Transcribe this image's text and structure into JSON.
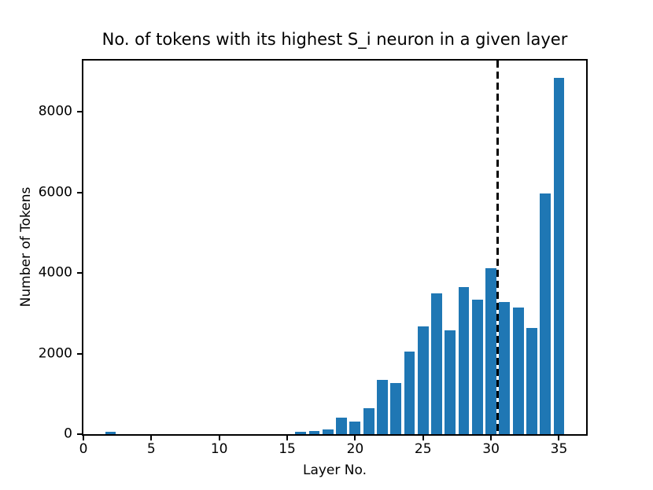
{
  "figure": {
    "background": "#ffffff",
    "text_color": "#000000"
  },
  "chart_data": {
    "type": "bar",
    "title": "No. of tokens with its highest S_i neuron in a given layer",
    "xlabel": "Layer No.",
    "ylabel": "Number of Tokens",
    "bar_color": "#1f77b4",
    "bar_width": 0.8,
    "categories": [
      0,
      1,
      2,
      3,
      4,
      5,
      6,
      7,
      8,
      9,
      10,
      11,
      12,
      13,
      14,
      15,
      16,
      17,
      18,
      19,
      20,
      21,
      22,
      23,
      24,
      25,
      26,
      27,
      28,
      29,
      30,
      31,
      32,
      33,
      34,
      35
    ],
    "values": [
      0,
      0,
      50,
      0,
      0,
      0,
      0,
      0,
      0,
      0,
      0,
      0,
      0,
      0,
      0,
      0,
      50,
      80,
      120,
      410,
      310,
      650,
      1350,
      1270,
      2050,
      2670,
      3500,
      2580,
      3650,
      3340,
      4120,
      3280,
      3150,
      2630,
      5980,
      8850
    ],
    "xticks": [
      0,
      5,
      10,
      15,
      20,
      25,
      30,
      35
    ],
    "yticks": [
      0,
      2000,
      4000,
      6000,
      8000
    ],
    "xlim": [
      0,
      37
    ],
    "ylim": [
      0,
      9270
    ],
    "grid": false,
    "legend": null,
    "vline": {
      "x": 30.5,
      "color": "#000000",
      "style": "dashed"
    }
  }
}
